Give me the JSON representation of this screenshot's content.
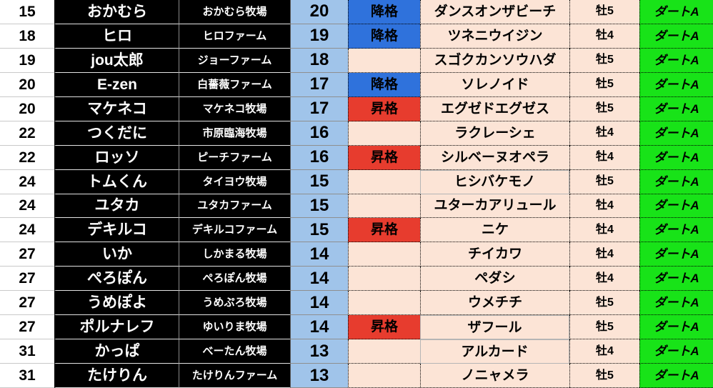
{
  "colors": {
    "demote_blue": "#2F72DC",
    "promote_red": "#E73C2E",
    "points_blue": "#A0C4EA",
    "cell_beige": "#FCE4D6",
    "grade_green": "#18E318",
    "row_black": "#000000"
  },
  "status_legend": {
    "demote_label": "降格",
    "promote_label": "昇格"
  },
  "table": {
    "rows": [
      {
        "rank": "15",
        "owner": "おかむら",
        "farm": "おかむら牧場",
        "points": "20",
        "status": "降格",
        "status_type": "demote",
        "horse": "ダンスオンザビーチ",
        "sex": "牡5",
        "grade": "ダートA",
        "sel": false
      },
      {
        "rank": "18",
        "owner": "ヒロ",
        "farm": "ヒロファーム",
        "points": "19",
        "status": "降格",
        "status_type": "demote",
        "horse": "ツネニウイジン",
        "sex": "牡4",
        "grade": "ダートA",
        "sel": false
      },
      {
        "rank": "19",
        "owner": "jou太郎",
        "farm": "ジョーファーム",
        "points": "18",
        "status": "",
        "status_type": "",
        "horse": "スゴクカンソウハダ",
        "sex": "牡5",
        "grade": "ダートA",
        "sel": false
      },
      {
        "rank": "20",
        "owner": "E-zen",
        "farm": "白薔薇ファーム",
        "points": "17",
        "status": "降格",
        "status_type": "demote",
        "horse": "ソレノイド",
        "sex": "牡5",
        "grade": "ダートA",
        "sel": false
      },
      {
        "rank": "20",
        "owner": "マケネコ",
        "farm": "マケネコ牧場",
        "points": "17",
        "status": "昇格",
        "status_type": "promote",
        "horse": "エグゼドエグゼス",
        "sex": "牡5",
        "grade": "ダートA",
        "sel": false
      },
      {
        "rank": "22",
        "owner": "つくだに",
        "farm": "市原臨海牧場",
        "points": "16",
        "status": "",
        "status_type": "",
        "horse": "ラクレーシェ",
        "sex": "牡4",
        "grade": "ダートA",
        "sel": false
      },
      {
        "rank": "22",
        "owner": "ロッソ",
        "farm": "ピーチファーム",
        "points": "16",
        "status": "昇格",
        "status_type": "promote",
        "horse": "シルベーヌオペラ",
        "sex": "牡4",
        "grade": "ダートA",
        "sel": false
      },
      {
        "rank": "24",
        "owner": "トムくん",
        "farm": "タイヨウ牧場",
        "points": "15",
        "status": "",
        "status_type": "",
        "horse": "ヒシバケモノ",
        "sex": "牡5",
        "grade": "ダートA",
        "sel": true
      },
      {
        "rank": "24",
        "owner": "ユタカ",
        "farm": "ユタカファーム",
        "points": "15",
        "status": "",
        "status_type": "",
        "horse": "ユターカアリュール",
        "sex": "牡4",
        "grade": "ダートA",
        "sel": false
      },
      {
        "rank": "24",
        "owner": "デキルコ",
        "farm": "デキルコファーム",
        "points": "15",
        "status": "昇格",
        "status_type": "promote",
        "horse": "ニケ",
        "sex": "牡4",
        "grade": "ダートA",
        "sel": false
      },
      {
        "rank": "27",
        "owner": "いか",
        "farm": "しかまる牧場",
        "points": "14",
        "status": "",
        "status_type": "",
        "horse": "チイカワ",
        "sex": "牡4",
        "grade": "ダートA",
        "sel": false
      },
      {
        "rank": "27",
        "owner": "ぺろぽん",
        "farm": "ぺろぽん牧場",
        "points": "14",
        "status": "",
        "status_type": "",
        "horse": "ペダシ",
        "sex": "牡4",
        "grade": "ダートA",
        "sel": false
      },
      {
        "rank": "27",
        "owner": "うめぽよ",
        "farm": "うめぷろ牧場",
        "points": "14",
        "status": "",
        "status_type": "",
        "horse": "ウメチチ",
        "sex": "牡5",
        "grade": "ダートA",
        "sel": false
      },
      {
        "rank": "27",
        "owner": "ポルナレフ",
        "farm": "ゆいりま牧場",
        "points": "14",
        "status": "昇格",
        "status_type": "promote",
        "horse": "ザフール",
        "sex": "牡5",
        "grade": "ダートA",
        "sel": true
      },
      {
        "rank": "31",
        "owner": "かっぱ",
        "farm": "べーたん牧場",
        "points": "13",
        "status": "",
        "status_type": "",
        "horse": "アルカード",
        "sex": "牡4",
        "grade": "ダートA",
        "sel": true
      },
      {
        "rank": "31",
        "owner": "たけりん",
        "farm": "たけりんファーム",
        "points": "13",
        "status": "",
        "status_type": "",
        "horse": "ノニャメラ",
        "sex": "牡5",
        "grade": "ダートA",
        "sel": false
      }
    ]
  }
}
